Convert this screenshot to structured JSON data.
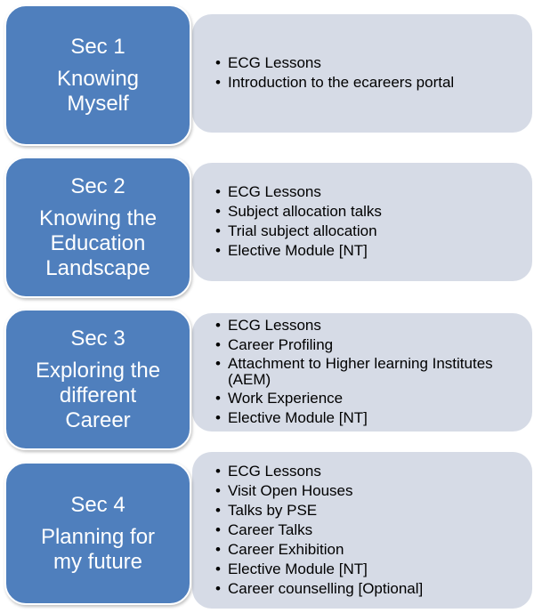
{
  "colors": {
    "card_fill": "#4f7fbd",
    "panel_fill": "#d6dbe6",
    "card_text": "#ffffff",
    "panel_text": "#000000"
  },
  "sections": [
    {
      "sec_label": "Sec 1",
      "title": "Knowing\nMyself",
      "items": [
        "ECG Lessons",
        "Introduction to the ecareers portal"
      ]
    },
    {
      "sec_label": "Sec 2",
      "title": "Knowing the\nEducation\nLandscape",
      "items": [
        "ECG Lessons",
        "Subject allocation talks",
        "Trial subject allocation",
        "Elective Module [NT]"
      ]
    },
    {
      "sec_label": "Sec 3",
      "title": "Exploring the\ndifferent\nCareer",
      "items": [
        "ECG Lessons",
        "Career Profiling",
        "Attachment to Higher learning Institutes (AEM)",
        "Work Experience",
        "Elective Module [NT]"
      ]
    },
    {
      "sec_label": "Sec 4",
      "title": "Planning for\nmy future",
      "items": [
        "ECG Lessons",
        "Visit Open Houses",
        "Talks by PSE",
        "Career Talks",
        "Career Exhibition",
        "Elective Module [NT]",
        "Career counselling [Optional]"
      ]
    }
  ]
}
